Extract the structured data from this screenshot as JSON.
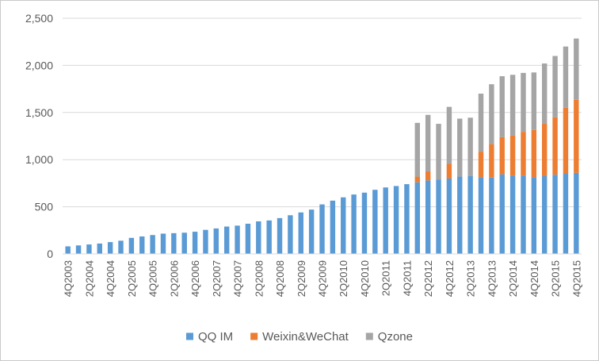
{
  "chart_data": {
    "type": "bar",
    "stacked": true,
    "categories": [
      "4Q2003",
      "1Q2004",
      "2Q2004",
      "3Q2004",
      "4Q2004",
      "1Q2005",
      "2Q2005",
      "3Q2005",
      "4Q2005",
      "1Q2006",
      "2Q2006",
      "3Q2006",
      "4Q2006",
      "1Q2007",
      "2Q2007",
      "3Q2007",
      "4Q2007",
      "1Q2008",
      "2Q2008",
      "3Q2008",
      "4Q2008",
      "1Q2009",
      "2Q2009",
      "3Q2009",
      "4Q2009",
      "1Q2010",
      "2Q2010",
      "3Q2010",
      "4Q2010",
      "1Q2011",
      "2Q2011",
      "3Q2011",
      "4Q2011",
      "1Q2012",
      "2Q2012",
      "3Q2012",
      "4Q2012",
      "1Q2013",
      "2Q2013",
      "3Q2013",
      "4Q2013",
      "1Q2014",
      "2Q2014",
      "3Q2014",
      "4Q2014",
      "1Q2015",
      "2Q2015",
      "3Q2015",
      "4Q2015"
    ],
    "x_tick_labels": [
      "4Q2003",
      "2Q2004",
      "4Q2004",
      "2Q2005",
      "4Q2005",
      "2Q2006",
      "4Q2006",
      "2Q2007",
      "4Q2007",
      "2Q2008",
      "4Q2008",
      "2Q2009",
      "4Q2009",
      "2Q2010",
      "4Q2010",
      "2Q2011",
      "4Q2011",
      "2Q2012",
      "4Q2012",
      "2Q2013",
      "4Q2013",
      "2Q2014",
      "4Q2014",
      "2Q2015",
      "4Q2015"
    ],
    "series": [
      {
        "name": "QQ IM",
        "color": "#5b9bd5",
        "values": [
          80,
          90,
          100,
          110,
          125,
          140,
          170,
          185,
          200,
          215,
          220,
          225,
          235,
          255,
          270,
          290,
          300,
          320,
          345,
          355,
          380,
          410,
          440,
          470,
          525,
          565,
          600,
          630,
          650,
          680,
          705,
          720,
          740,
          760,
          780,
          790,
          800,
          820,
          825,
          815,
          810,
          845,
          830,
          830,
          815,
          825,
          840,
          850,
          860
        ]
      },
      {
        "name": "Weixin&WeChat",
        "color": "#ed7d31",
        "values": [
          0,
          0,
          0,
          0,
          0,
          0,
          0,
          0,
          0,
          0,
          0,
          0,
          0,
          0,
          0,
          0,
          0,
          0,
          0,
          0,
          0,
          0,
          0,
          0,
          0,
          0,
          0,
          0,
          0,
          0,
          0,
          0,
          0,
          60,
          95,
          0,
          155,
          0,
          0,
          270,
          355,
          395,
          425,
          465,
          500,
          555,
          610,
          700,
          775
        ]
      },
      {
        "name": "Qzone",
        "color": "#a5a5a5",
        "values": [
          0,
          0,
          0,
          0,
          0,
          0,
          0,
          0,
          0,
          0,
          0,
          0,
          0,
          0,
          0,
          0,
          0,
          0,
          0,
          0,
          0,
          0,
          0,
          0,
          0,
          0,
          0,
          0,
          0,
          0,
          0,
          0,
          0,
          570,
          600,
          590,
          605,
          615,
          620,
          615,
          635,
          645,
          645,
          625,
          610,
          640,
          650,
          650,
          650
        ]
      }
    ],
    "y_ticks": [
      "0",
      "500",
      "1,000",
      "1,500",
      "2,000",
      "2,500"
    ],
    "ylim": [
      0,
      2500
    ],
    "legend_position": "bottom",
    "grid": true
  }
}
